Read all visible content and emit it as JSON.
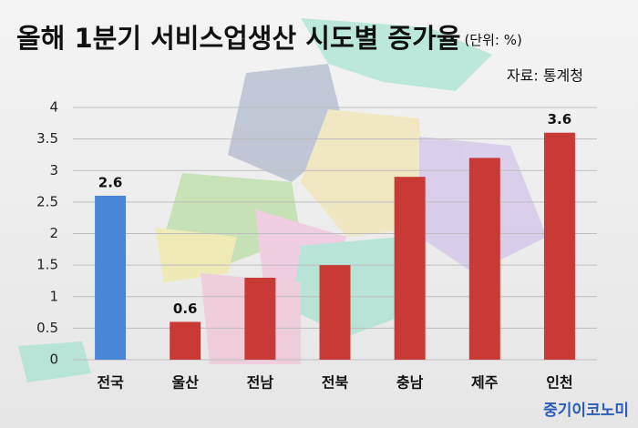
{
  "chart_data": {
    "type": "bar",
    "title": "올해 1분기 서비스업생산 시도별 증가율",
    "unit": "(단위: %)",
    "source": "자료: 통계청",
    "watermark": "중기이코노미",
    "categories": [
      "전국",
      "울산",
      "전남",
      "전북",
      "충남",
      "제주",
      "인천"
    ],
    "values": [
      2.6,
      0.6,
      1.3,
      1.5,
      2.9,
      3.2,
      3.6
    ],
    "value_labels": [
      "2.6",
      "0.6",
      null,
      null,
      null,
      null,
      "3.6"
    ],
    "colors": [
      "#4a86d8",
      "#c93a36",
      "#c93a36",
      "#c93a36",
      "#c93a36",
      "#c93a36",
      "#c93a36"
    ],
    "ylim": [
      0,
      4
    ],
    "yticks": [
      0,
      0.5,
      1,
      1.5,
      2,
      2.5,
      3,
      3.5,
      4
    ],
    "grid": true
  }
}
